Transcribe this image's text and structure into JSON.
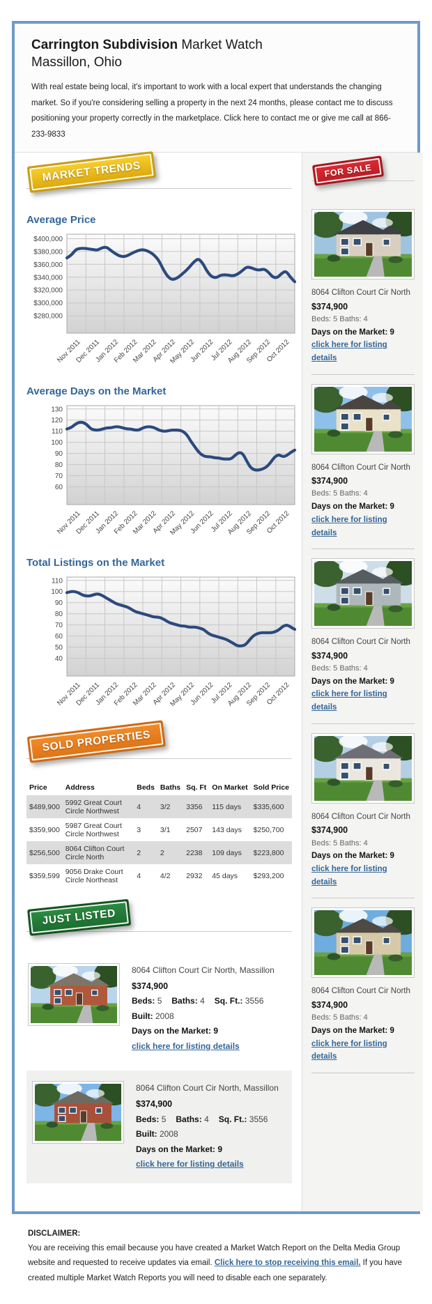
{
  "colors": {
    "container_border": "#6e9ac9",
    "heading_blue": "#336699",
    "chart_line": "#2b4a7d",
    "badge_gold": "#e8b511",
    "badge_orange": "#e87a1d",
    "badge_green": "#1e7230",
    "badge_red": "#c8232c"
  },
  "header": {
    "title_bold": "Carrington Subdivision",
    "title_rest": " Market Watch",
    "subtitle": "Massillon, Ohio",
    "intro": "With real estate being local, it's important to work with a local expert that understands the changing market. So if you're considering selling a property in the next 24 months, please contact me to discuss positioning your property correctly in the marketplace. Click here to contact me or give me call at 866-233-9833"
  },
  "badges": {
    "market_trends": "MARKET TRENDS",
    "sold_properties": "SOLD PROPERTIES",
    "just_listed": "JUST LISTED",
    "for_sale": "FOR SALE"
  },
  "sections": {
    "average_price": "Average Price",
    "avg_days": "Average Days on the Market",
    "total_listings": "Total Listings on the Market"
  },
  "chart_data": [
    {
      "type": "line",
      "name": "average-price",
      "title": "Average Price",
      "x_labels": [
        "Nov 2011",
        "Dec 2011",
        "Jan 2012",
        "Feb 2012",
        "Mar 2012",
        "Apr 2012",
        "May 2012",
        "Jun 2012",
        "Jul 2012",
        "Aug 2012",
        "Sep 2012",
        "Oct 2012"
      ],
      "values": [
        370000,
        374000,
        383000,
        385000,
        385000,
        384000,
        383000,
        382000,
        386000,
        387000,
        382000,
        377000,
        373000,
        372000,
        374000,
        378000,
        381000,
        383000,
        382000,
        379000,
        374000,
        366000,
        352000,
        341000,
        336000,
        338000,
        343000,
        349000,
        356000,
        364000,
        369000,
        362000,
        349000,
        341000,
        339000,
        343000,
        344000,
        343000,
        342000,
        345000,
        350000,
        356000,
        355000,
        352000,
        351000,
        353000,
        348000,
        340000,
        339000,
        346000,
        350000,
        340000,
        333000
      ],
      "yticks": [
        400000,
        380000,
        360000,
        340000,
        320000,
        300000,
        280000
      ],
      "ytick_labels": [
        "$400,000",
        "$380,000",
        "$360,000",
        "$340,000",
        "$320,000",
        "$300,000",
        "$280,000"
      ],
      "ylim": [
        253000,
        407000
      ],
      "grid": true,
      "legend": "none"
    },
    {
      "type": "line",
      "name": "average-days-on-market",
      "title": "Average Days on the Market",
      "x_labels": [
        "Nov 2011",
        "Dec 2011",
        "Jan 2012",
        "Feb 2012",
        "Mar 2012",
        "Apr 2012",
        "May 2012",
        "Jun 2012",
        "Jul 2012",
        "Aug 2012",
        "Sep 2012",
        "Oct 2012"
      ],
      "values": [
        112,
        113,
        116,
        118,
        118,
        116,
        112,
        111,
        111,
        112,
        113,
        113,
        114,
        114,
        113,
        112,
        112,
        111,
        111,
        113,
        114,
        114,
        113,
        111,
        110,
        110,
        111,
        111,
        111,
        110,
        107,
        101,
        96,
        91,
        88,
        87,
        87,
        86,
        86,
        85,
        85,
        85,
        88,
        91,
        90,
        83,
        77,
        75,
        75,
        76,
        78,
        82,
        87,
        89,
        87,
        88,
        91,
        93
      ],
      "yticks": [
        130,
        120,
        110,
        100,
        90,
        80,
        70,
        60
      ],
      "ytick_labels": [
        "130",
        "120",
        "110",
        "100",
        "90",
        "80",
        "70",
        "60"
      ],
      "ylim": [
        44,
        133
      ],
      "grid": true,
      "legend": "none"
    },
    {
      "type": "line",
      "name": "total-listings",
      "title": "Total Listings on the Market",
      "x_labels": [
        "Nov 2011",
        "Dec 2011",
        "Jan 2012",
        "Feb 2012",
        "Mar 2012",
        "Apr 2012",
        "May 2012",
        "Jun 2012",
        "Jul 2012",
        "Aug 2012",
        "Sep 2012",
        "Oct 2012"
      ],
      "values": [
        99,
        100,
        100,
        99,
        97,
        96,
        96,
        97,
        98,
        97,
        95,
        93,
        91,
        89,
        88,
        87,
        86,
        84,
        82,
        81,
        80,
        79,
        78,
        77,
        77,
        76,
        74,
        72,
        71,
        70,
        69,
        69,
        68,
        68,
        68,
        67,
        66,
        63,
        61,
        60,
        59,
        58,
        57,
        55,
        53,
        51,
        51,
        52,
        56,
        60,
        62,
        63,
        63,
        63,
        63,
        64,
        66,
        69,
        70,
        68,
        66
      ],
      "yticks": [
        110,
        100,
        90,
        80,
        70,
        60,
        50,
        40
      ],
      "ytick_labels": [
        "110",
        "100",
        "90",
        "80",
        "70",
        "60",
        "50",
        "40"
      ],
      "ylim": [
        24,
        113
      ],
      "grid": true,
      "legend": "none"
    }
  ],
  "sold_table": {
    "headers": [
      "Price",
      "Address",
      "Beds",
      "Baths",
      "Sq. Ft",
      "On Market",
      "Sold Price"
    ],
    "rows": [
      [
        "$489,900",
        "5992 Great Court Circle Northwest",
        "4",
        "3/2",
        "3356",
        "115 days",
        "$335,600"
      ],
      [
        "$359,900",
        "5987 Great Court Circle Northwest",
        "3",
        "3/1",
        "2507",
        "143 days",
        "$250,700"
      ],
      [
        "$256,500",
        "8064 Clifton Court Circle North",
        "2",
        "2",
        "2238",
        "109 days",
        "$223,800"
      ],
      [
        "$359,599",
        "9056 Drake Court Circle Northeast",
        "4",
        "4/2",
        "2932",
        "45 days",
        "$293,200"
      ]
    ]
  },
  "just_listed": {
    "items": [
      {
        "address": "8064 Clifton Court Cir North, Massillon",
        "price": "$374,900",
        "attrs": [
          [
            "Beds:",
            "5"
          ],
          [
            "Baths:",
            "4"
          ],
          [
            "Sq. Ft.:",
            "3556"
          ],
          [
            "Built:",
            "2008"
          ]
        ],
        "days": "Days on the Market: 9",
        "link": "click here for listing details",
        "photo": {
          "body": "#b0583c",
          "roof": "#7d7668",
          "sky": "#b9d5ec"
        }
      },
      {
        "address": "8064 Clifton Court Cir North, Massillon",
        "price": "$374,900",
        "attrs": [
          [
            "Beds:",
            "5"
          ],
          [
            "Baths:",
            "4"
          ],
          [
            "Sq. Ft.:",
            "3556"
          ],
          [
            "Built:",
            "2008"
          ]
        ],
        "days": "Days on the Market: 9",
        "link": "click here for listing details",
        "photo": {
          "body": "#a8503a",
          "roof": "#6f6a60",
          "sky": "#7db5e8"
        }
      }
    ]
  },
  "sidebar": {
    "items": [
      {
        "address": "8064 Clifton Court Cir North",
        "price": "$374,900",
        "beds_baths": "Beds: 5 Baths: 4",
        "days": "Days on the Market: 9",
        "link": "click here for listing details",
        "photo": {
          "body": "#d9cfc0",
          "roof": "#3f3f46",
          "sky": "#9fc4e0"
        }
      },
      {
        "address": "8064 Clifton Court Cir North",
        "price": "$374,900",
        "beds_baths": "Beds: 5 Baths: 4",
        "days": "Days on the Market: 9",
        "link": "click here for listing details",
        "photo": {
          "body": "#e9e2c8",
          "roof": "#4a4540",
          "sky": "#8fc0ea"
        }
      },
      {
        "address": "8064 Clifton Court Cir North",
        "price": "$374,900",
        "beds_baths": "Beds: 5 Baths: 4",
        "days": "Days on the Market: 9",
        "link": "click here for listing details",
        "photo": {
          "body": "#aeb8ba",
          "roof": "#555d60",
          "sky": "#cfdde8"
        }
      },
      {
        "address": "8064 Clifton Court Cir North",
        "price": "$374,900",
        "beds_baths": "Beds: 5 Baths: 4",
        "days": "Days on the Market: 9",
        "link": "click here for listing details",
        "photo": {
          "body": "#ece7de",
          "roof": "#6e6e74",
          "sky": "#b4cfe4"
        }
      },
      {
        "address": "8064 Clifton Court Cir North",
        "price": "$374,900",
        "beds_baths": "Beds: 5 Baths: 4",
        "days": "Days on the Market: 9",
        "link": "click here for listing details",
        "photo": {
          "body": "#d6c9a8",
          "roof": "#4e4a44",
          "sky": "#6eadde"
        }
      }
    ]
  },
  "footer": {
    "label": "DISCLAIMER:",
    "text_1": "You are receiving this email because you have created a Market Watch Report on the Delta Media Group website and requested to receive updates via email. ",
    "link": "Click here to stop receiving this email.",
    "text_2": " If you have created multiple Market Watch Reports you will need to disable each one separately."
  }
}
